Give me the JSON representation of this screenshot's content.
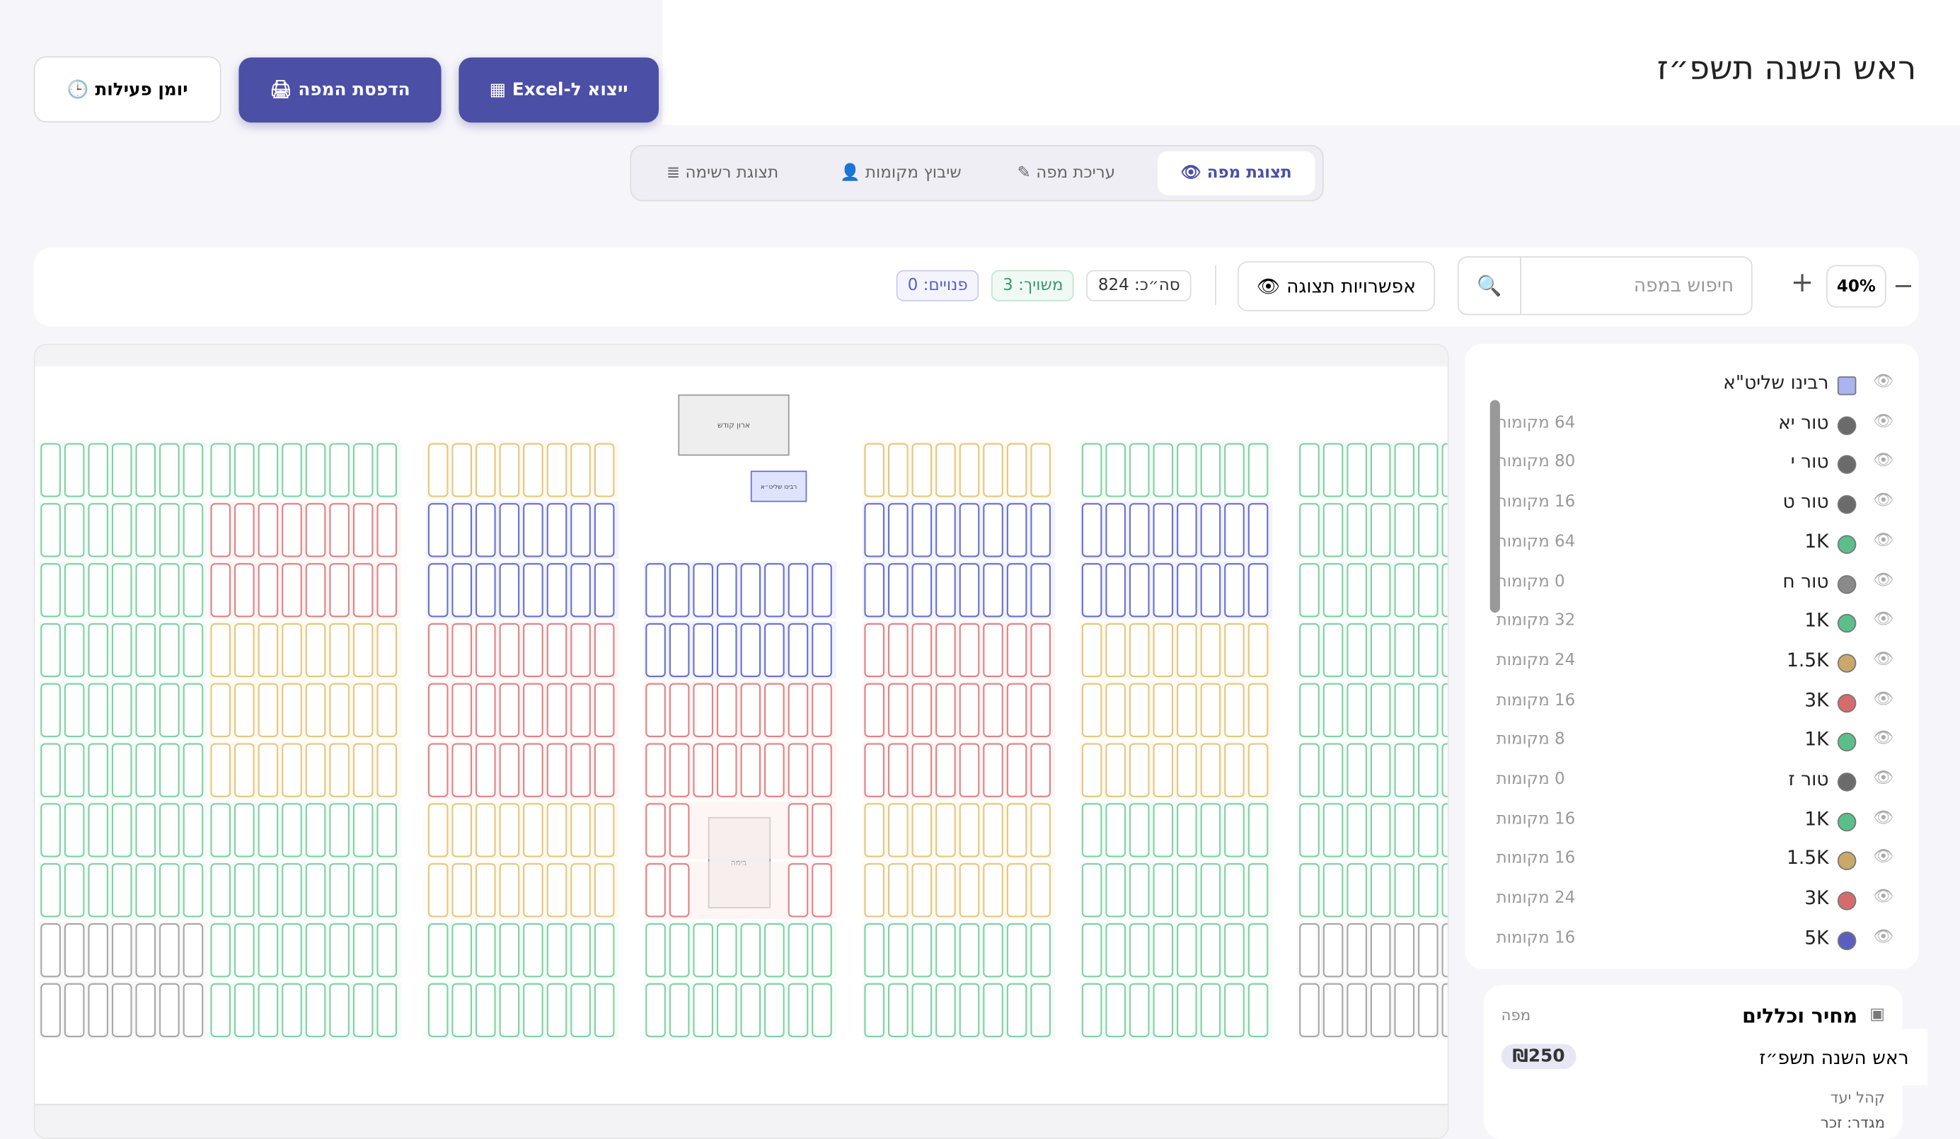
{
  "header": {
    "title": "ראש השנה תשפ״ז",
    "buttons": [
      "יומן פעילות",
      "הדפסת המפה",
      "ייצוא ל-Excel"
    ]
  },
  "tabs": [
    "תצוגת מפה",
    "עריכת מפה",
    "שיבוץ מקומות",
    "תצוגת רשימה"
  ],
  "toolbar": {
    "zoom": "40%",
    "search_placeholder": "חיפוש במפה",
    "display_options": "אפשרויות תצוגה",
    "stats": [
      "סה״כ: 824",
      "משויך: 3",
      "פנויים: 0"
    ]
  },
  "map": {
    "labels": [
      "ארון קודש",
      "רבינו שליט״א",
      "בימה"
    ]
  },
  "legend": {
    "items": [
      {
        "name": "רבינו שליט\"א",
        "color": "#a9b4f0"
      },
      {
        "name": "טור יא",
        "color": "#6b6b6b",
        "count": "64 מקומות"
      },
      {
        "name": "טור י",
        "color": "#6b6b6b",
        "count": "80 מקומות"
      },
      {
        "name": "טור ט",
        "color": "#6b6b6b",
        "count": "16 מקומות"
      },
      {
        "name": "1K",
        "color": "#5bbf8a",
        "count": "64 מקומות"
      },
      {
        "name": "טור ח",
        "color": "#8a8a8a",
        "count": "0 מקומות"
      },
      {
        "name": "1K",
        "color": "#5bbf8a",
        "count": "32 מקומות"
      },
      {
        "name": "1.5K",
        "color": "#c9a86a",
        "count": "24 מקומות"
      },
      {
        "name": "3K",
        "color": "#d66b6b",
        "count": "16 מקומות"
      },
      {
        "name": "1K",
        "color": "#5bbf8a",
        "count": "8 מקומות"
      },
      {
        "name": "טור ז",
        "color": "#6b6b6b",
        "count": "0 מקומות"
      },
      {
        "name": "1K",
        "color": "#5bbf8a",
        "count": "16 מקומות"
      },
      {
        "name": "1.5K",
        "color": "#c9a86a",
        "count": "16 מקומות"
      },
      {
        "name": "3K",
        "color": "#d66b6b",
        "count": "24 מקומות"
      },
      {
        "name": "5K",
        "color": "#5a5fbf",
        "count": "16 מקומות"
      }
    ]
  },
  "price_panel": {
    "title": "מחיר וכללים",
    "tag": "מפה",
    "event": "ראש השנה תשפ״ז",
    "price": "₪250",
    "audience": "קהל יעד",
    "gender": "מגדר: זכר"
  }
}
